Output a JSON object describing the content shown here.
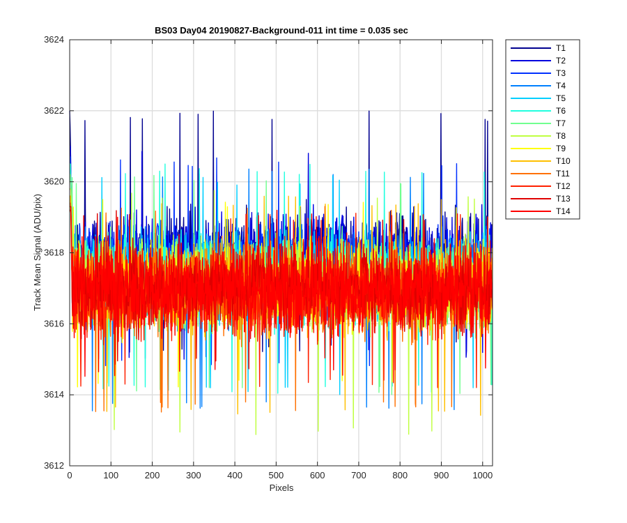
{
  "chart_data": {
    "type": "line",
    "title": "BS03 Day04 20190827-Background-011 int time = 0.035 sec",
    "xlabel": "Pixels",
    "ylabel": "Track Mean Signal (ADU/pix)",
    "xlim": [
      0,
      1024
    ],
    "ylim": [
      3612,
      3624
    ],
    "xticks": [
      0,
      100,
      200,
      300,
      400,
      500,
      600,
      700,
      800,
      900,
      1000
    ],
    "yticks": [
      3612,
      3614,
      3616,
      3618,
      3620,
      3622,
      3624
    ],
    "grid": true,
    "legend_position": "outside-top-right",
    "n_pixels": 1024,
    "series": [
      {
        "name": "T1",
        "color": "#00008f",
        "mean": 3617.9,
        "range": [
          3615.2,
          3622.0
        ],
        "start": 3622.6
      },
      {
        "name": "T2",
        "color": "#0000df",
        "mean": 3617.8,
        "range": [
          3615.0,
          3621.0
        ],
        "start": 3622.8
      },
      {
        "name": "T3",
        "color": "#0030ff",
        "mean": 3617.6,
        "range": [
          3614.8,
          3620.7
        ],
        "start": 3622.5
      },
      {
        "name": "T4",
        "color": "#0080ff",
        "mean": 3617.4,
        "range": [
          3613.5,
          3620.4
        ],
        "start": 3622.6
      },
      {
        "name": "T5",
        "color": "#00cfff",
        "mean": 3617.3,
        "range": [
          3614.0,
          3620.2
        ],
        "start": 3622.4
      },
      {
        "name": "T6",
        "color": "#20ffdf",
        "mean": 3617.2,
        "range": [
          3614.0,
          3620.5
        ],
        "start": 3622.3
      },
      {
        "name": "T7",
        "color": "#70ff8f",
        "mean": 3617.2,
        "range": [
          3614.0,
          3620.2
        ],
        "start": 3622.0
      },
      {
        "name": "T8",
        "color": "#bfff40",
        "mean": 3617.1,
        "range": [
          3612.8,
          3619.8
        ],
        "start": 3621.8
      },
      {
        "name": "T9",
        "color": "#ffff00",
        "mean": 3617.0,
        "range": [
          3614.2,
          3619.5
        ],
        "start": 3621.6
      },
      {
        "name": "T10",
        "color": "#ffbf00",
        "mean": 3617.0,
        "range": [
          3613.4,
          3619.6
        ],
        "start": 3621.5
      },
      {
        "name": "T11",
        "color": "#ff7000",
        "mean": 3616.9,
        "range": [
          3613.5,
          3619.4
        ],
        "start": 3621.4
      },
      {
        "name": "T12",
        "color": "#ff2000",
        "mean": 3616.9,
        "range": [
          3614.2,
          3619.2
        ],
        "start": 3621.3
      },
      {
        "name": "T13",
        "color": "#df0000",
        "mean": 3617.0,
        "range": [
          3614.8,
          3619.2
        ],
        "start": 3622.0
      },
      {
        "name": "T14",
        "color": "#ff0000",
        "mean": 3617.0,
        "range": [
          3614.5,
          3619.3
        ],
        "start": 3622.4
      }
    ]
  }
}
